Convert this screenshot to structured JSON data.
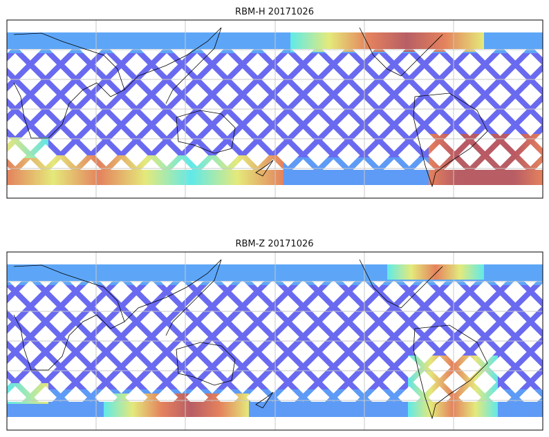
{
  "panels": [
    {
      "title": "RBM-H 20171026"
    },
    {
      "title": "RBM-Z 20171026"
    }
  ],
  "colors": {
    "low": "#6a6af0",
    "mid_low": "#5ab0f8",
    "mid": "#60f0e8",
    "mid_high": "#f0f070",
    "high": "#f08050",
    "max": "#c05858"
  }
}
